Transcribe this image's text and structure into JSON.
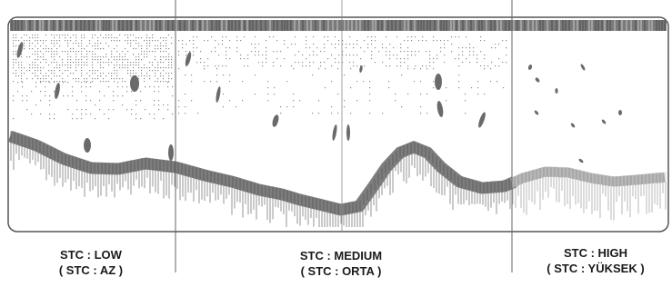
{
  "panels": [
    {
      "key": "low",
      "line1": "STC : LOW",
      "line2": "( STC : AZ )"
    },
    {
      "key": "medium",
      "line1": "STC : MEDIUM",
      "line2": "( STC : ORTA )"
    },
    {
      "key": "high",
      "line1": "STC : HIGH",
      "line2": "( STC : YÜKSEK )"
    }
  ],
  "colors": {
    "frame": "#555555",
    "surface_band": "#777777",
    "seabed_band": "#808080",
    "seabed_band_high": "#a8a8a8",
    "fish": "#6a6a6a",
    "noise": "#8a8a8a",
    "tail": "#999999"
  }
}
